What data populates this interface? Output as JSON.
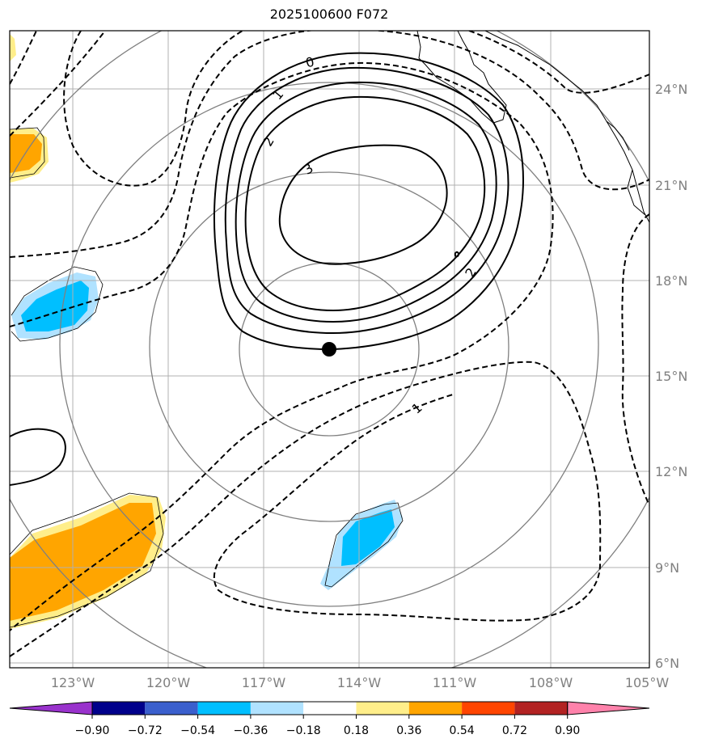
{
  "title": "2025100600 F072",
  "map": {
    "lon_ticks": [
      "123°W",
      "120°W",
      "117°W",
      "114°W",
      "111°W",
      "108°W",
      "105°W"
    ],
    "lat_ticks": [
      "24°N",
      "21°N",
      "18°N",
      "15°N",
      "12°N",
      "9°N",
      "6°N"
    ],
    "contour_labels": [
      "0",
      "1",
      "2",
      "3",
      "2",
      "1"
    ],
    "center_marker": {
      "lon": -115.0,
      "lat": 15.9
    },
    "colors": {
      "gridline": "#b0b0b0",
      "range_ring": "#808080",
      "contour": "#000000",
      "positive_fill": "#ffa500",
      "positive_edge": "#ffee8a",
      "negative_fill": "#00bfff",
      "negative_edge": "#b0e2ff"
    }
  },
  "colorbar": {
    "labels": [
      "−0.90",
      "−0.72",
      "−0.54",
      "−0.36",
      "−0.18",
      "0.18",
      "0.36",
      "0.54",
      "0.72",
      "0.90"
    ],
    "colors": [
      "#9932cc",
      "#00008b",
      "#3a5fcd",
      "#00bfff",
      "#b0e2ff",
      "#ffffff",
      "#ffee8a",
      "#ffa500",
      "#ff4500",
      "#b22222",
      "#ff82ab"
    ]
  }
}
